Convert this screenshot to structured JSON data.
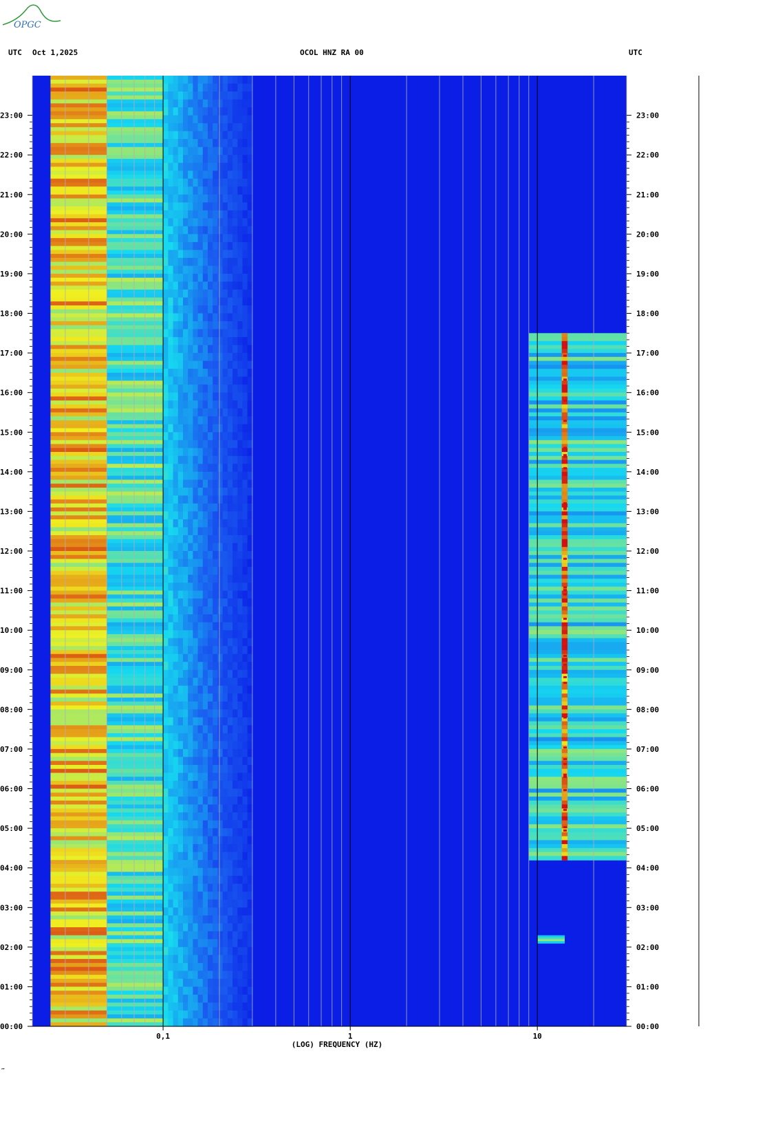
{
  "header": {
    "left_zone": "UTC",
    "date": "Oct 1,2025",
    "station": "OCOL HNZ RA 00",
    "right_zone": "UTC"
  },
  "logo": {
    "text": "OPGC"
  },
  "footer_mark": "‴",
  "colors": {
    "background": "#0a1ee6",
    "low_freq_band": "#16d9f0",
    "hot": "#f0f020",
    "peak": "#d21010"
  },
  "chart_data": {
    "type": "heatmap",
    "title": "OCOL HNZ RA 00",
    "xlabel": "(LOG) FREQUENCY (HZ)",
    "ylabel": "",
    "x_scale": "log",
    "x_range_hz": [
      0.02,
      30
    ],
    "x_ticks": [
      {
        "value": 0.1,
        "label": "0,1"
      },
      {
        "value": 1,
        "label": "1"
      },
      {
        "value": 10,
        "label": "10"
      }
    ],
    "y_range_hours": [
      0,
      24
    ],
    "y_ticks": [
      "00:00",
      "01:00",
      "02:00",
      "03:00",
      "04:00",
      "05:00",
      "06:00",
      "07:00",
      "08:00",
      "09:00",
      "10:00",
      "11:00",
      "12:00",
      "13:00",
      "14:00",
      "15:00",
      "16:00",
      "17:00",
      "18:00",
      "19:00",
      "20:00",
      "21:00",
      "22:00",
      "23:00"
    ],
    "colormap": [
      "#0a1ee6",
      "#1a5cf0",
      "#16d9f0",
      "#f0f020",
      "#d21010"
    ],
    "features": [
      {
        "name": "microseism band",
        "freq_hz": [
          0.025,
          0.05
        ],
        "hours": [
          0,
          24
        ],
        "level": 0.78
      },
      {
        "name": "secondary microseism",
        "freq_hz": [
          0.05,
          0.1
        ],
        "hours": [
          0,
          24
        ],
        "level": 0.55
      },
      {
        "name": "cultural noise",
        "freq_hz": [
          9,
          30
        ],
        "hours": [
          4.2,
          17.5
        ],
        "level": 0.5
      },
      {
        "name": "spectral line",
        "freq_hz": [
          13.5,
          14.5
        ],
        "hours": [
          4.2,
          17.5
        ],
        "level": 0.9
      },
      {
        "name": "event",
        "freq_hz": [
          10,
          14
        ],
        "hours": [
          2.1,
          2.3
        ],
        "level": 0.6
      }
    ]
  }
}
